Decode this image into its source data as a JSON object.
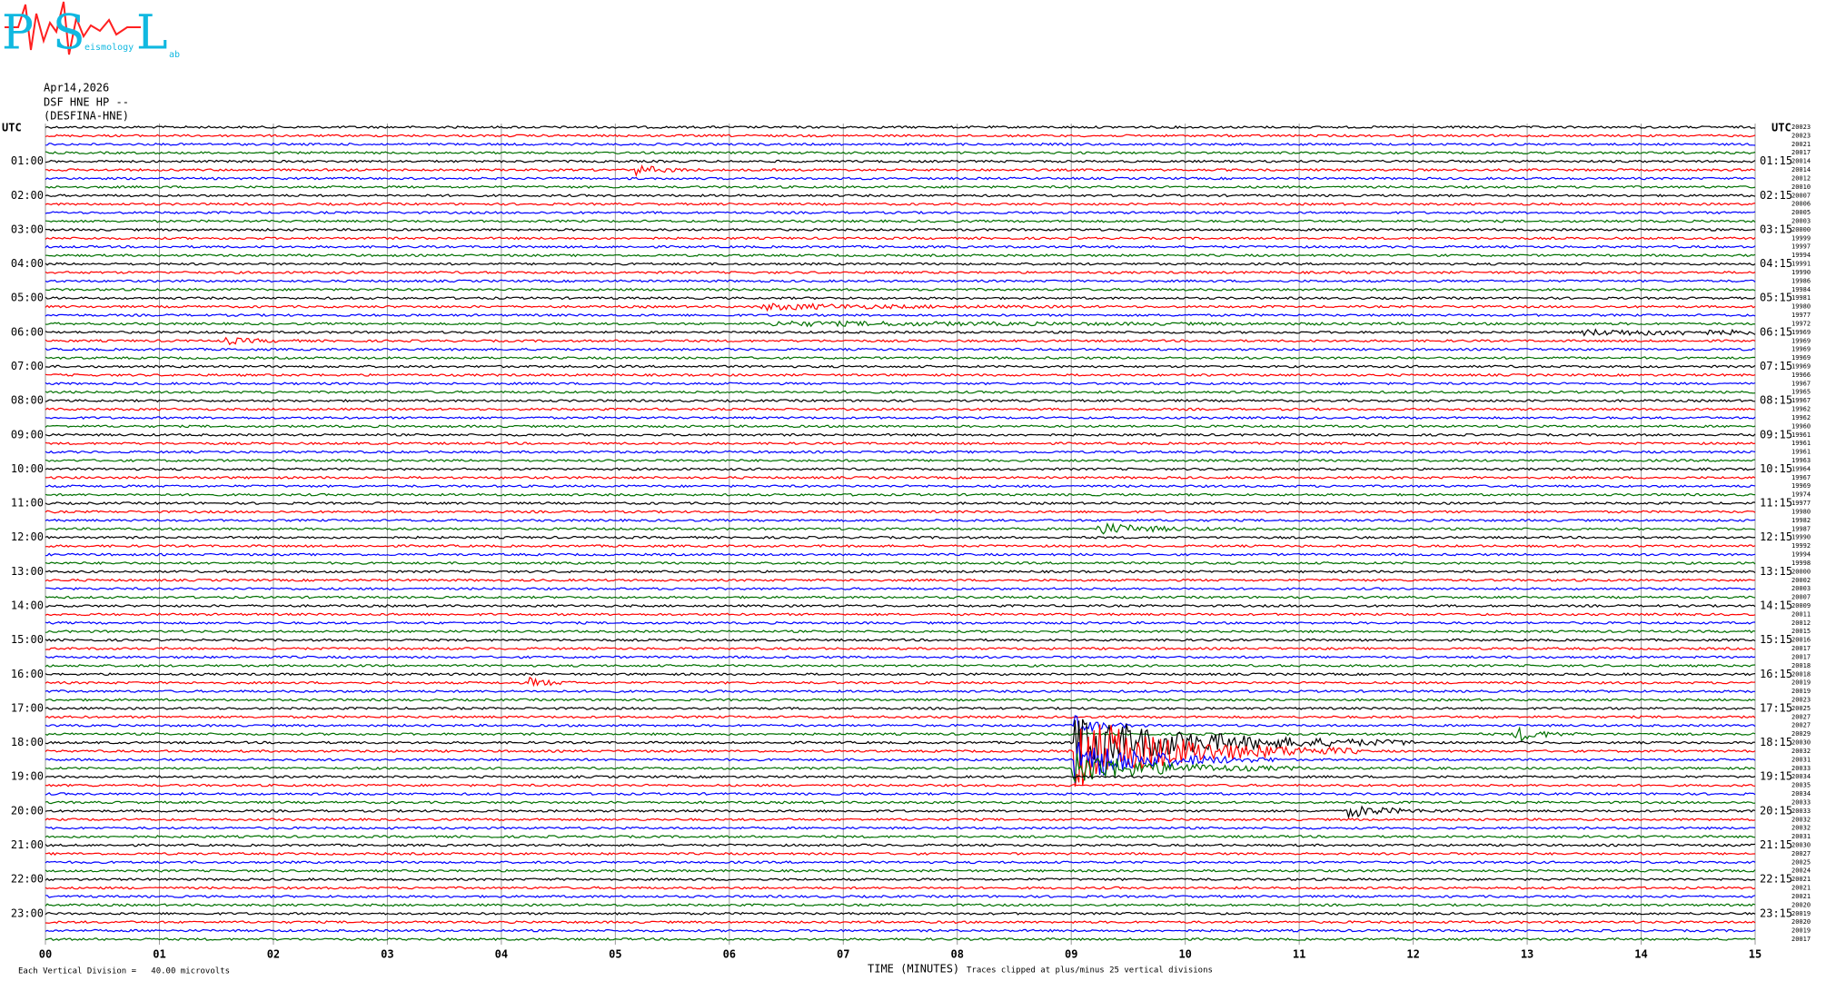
{
  "logo": {
    "p": "P",
    "s": "S",
    "l": "L",
    "sub1": "eismology",
    "sub2": "ab"
  },
  "header": {
    "date": "Apr14,2026",
    "station": "DSF HNE HP --",
    "name": "(DESFINA-HNE)"
  },
  "left_axis_title": "UTC",
  "right_axis_title": "UTC",
  "left_hours": [
    "01:00",
    "02:00",
    "03:00",
    "04:00",
    "05:00",
    "06:00",
    "07:00",
    "08:00",
    "09:00",
    "10:00",
    "11:00",
    "12:00",
    "13:00",
    "14:00",
    "15:00",
    "16:00",
    "17:00",
    "18:00",
    "19:00",
    "20:00",
    "21:00",
    "22:00",
    "23:00"
  ],
  "right_hours": [
    "01:15",
    "02:15",
    "03:15",
    "04:15",
    "05:15",
    "06:15",
    "07:15",
    "08:15",
    "09:15",
    "10:15",
    "11:15",
    "12:15",
    "13:15",
    "14:15",
    "15:15",
    "16:15",
    "17:15",
    "18:15",
    "19:15",
    "20:15",
    "21:15",
    "22:15",
    "23:15"
  ],
  "trace_offsets": [
    20023,
    20023,
    20021,
    20017,
    20014,
    20014,
    20012,
    20010,
    20007,
    20006,
    20005,
    20003,
    20000,
    19999,
    19997,
    19994,
    19991,
    19990,
    19986,
    19984,
    19981,
    19980,
    19977,
    19972,
    19969,
    19969,
    19969,
    19969,
    19969,
    19966,
    19967,
    19965,
    19967,
    19962,
    19962,
    19960,
    19961,
    19961,
    19961,
    19963,
    19964,
    19967,
    19969,
    19974,
    19977,
    19980,
    19982,
    19987,
    19990,
    19992,
    19994,
    19998,
    20000,
    20002,
    20003,
    20007,
    20009,
    20011,
    20012,
    20015,
    20016,
    20017,
    20017,
    20018,
    20018,
    20019,
    20019,
    20023,
    20025,
    20027,
    20027,
    20029,
    20030,
    20032,
    20031,
    20033,
    20034,
    20035,
    20034,
    20033,
    20033,
    20032,
    20032,
    20031,
    20030,
    20027,
    20025,
    20024,
    20021,
    20021,
    20021,
    20020,
    20019,
    20020,
    20019,
    20017
  ],
  "trace_colors": [
    "#000000",
    "#ff0000",
    "#0000ff",
    "#007000"
  ],
  "xlim": [
    0,
    15
  ],
  "xticks": [
    {
      "value": 0,
      "label": "00"
    },
    {
      "value": 1,
      "label": "01"
    },
    {
      "value": 2,
      "label": "02"
    },
    {
      "value": 3,
      "label": "03"
    },
    {
      "value": 4,
      "label": "04"
    },
    {
      "value": 5,
      "label": "05"
    },
    {
      "value": 6,
      "label": "06"
    },
    {
      "value": 7,
      "label": "07"
    },
    {
      "value": 8,
      "label": "08"
    },
    {
      "value": 9,
      "label": "09"
    },
    10,
    11,
    12,
    13,
    14,
    15
  ],
  "x_axis_label": "TIME (MINUTES)",
  "clip_note": "Traces clipped at plus/minus 25 vertical divisions",
  "scale_note": "Each Vertical Division =   40.00 microvolts"
}
